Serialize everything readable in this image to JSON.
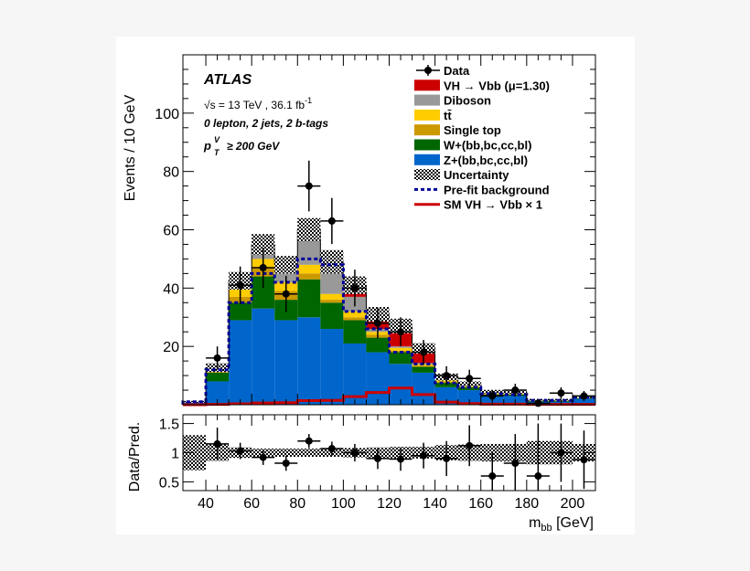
{
  "colors": {
    "vh": "#cc0000",
    "diboson": "#999999",
    "ttbar": "#ffcc00",
    "singletop": "#cc9900",
    "wjets": "#006600",
    "zjets": "#0066cc",
    "prefit": "#000099",
    "smvh": "#cc0000"
  },
  "chart_data": [
    {
      "type": "bar",
      "stacked": true,
      "annotations": {
        "atlas": "ATLAS",
        "energy": "√s = 13 TeV , 36.1 fb",
        "energy_sup": "-1",
        "selection": "0 lepton, 2 jets, 2 b-tags",
        "ptv_p": "p",
        "ptv_sup": "V",
        "ptv_sub": "T",
        "ptv_rest": "≥ 200 GeV"
      },
      "ylabel": "Events / 10 GeV",
      "ylim": [
        0,
        120
      ],
      "yticks": [
        20,
        40,
        60,
        80,
        100
      ],
      "xlim": [
        30,
        210
      ],
      "bin_edges": [
        30,
        40,
        50,
        60,
        70,
        80,
        90,
        100,
        110,
        120,
        130,
        140,
        150,
        160,
        170,
        180,
        190,
        200,
        210
      ],
      "series": [
        {
          "name": "Z+(bb,bc,cc,bl)",
          "key": "zjets",
          "values": [
            0.8,
            8,
            29,
            33,
            29,
            30,
            26,
            21,
            18,
            14,
            11,
            6,
            5,
            3,
            3,
            1,
            1,
            2
          ]
        },
        {
          "name": "W+(bb,bc,cc,bl)",
          "key": "wjets",
          "values": [
            0.2,
            3,
            6,
            11,
            7,
            13,
            9,
            8,
            5,
            4,
            2,
            1.5,
            1,
            0.5,
            0.5,
            0.3,
            0.3,
            0.3
          ]
        },
        {
          "name": "Single top",
          "key": "singletop",
          "values": [
            0,
            0.5,
            2,
            3,
            3,
            2,
            1,
            1,
            1,
            0.5,
            0.3,
            0.3,
            0.2,
            0.2,
            0.2,
            0.1,
            0.1,
            0.1
          ]
        },
        {
          "name": "tt̄",
          "key": "ttbar",
          "values": [
            0,
            0.5,
            3,
            3,
            3,
            3,
            2,
            2,
            1,
            1,
            0.5,
            0.5,
            0.3,
            0.3,
            0.2,
            0.1,
            0.1,
            0.1
          ]
        },
        {
          "name": "Diboson",
          "key": "diboson",
          "values": [
            0,
            0.5,
            2,
            4,
            5,
            10,
            9,
            5,
            1,
            0.5,
            0.5,
            0.2,
            0.2,
            0.2,
            0.2,
            0.1,
            0.1,
            0.1
          ]
        },
        {
          "name": "VH → Vbb (μ=1.30)",
          "key": "vh",
          "values": [
            0,
            0.2,
            0.5,
            1,
            1,
            2,
            2,
            4,
            5,
            7,
            5,
            1,
            0.5,
            0.3,
            0.2,
            0.1,
            0.1,
            0.1
          ]
        }
      ],
      "uncertainty_half_width": [
        0.3,
        1.5,
        3,
        3.5,
        3,
        4,
        4,
        3,
        2.5,
        2.5,
        1.8,
        1.2,
        0.8,
        0.6,
        0.5,
        0.3,
        0.3,
        0.4
      ],
      "prefit_background": [
        1,
        12,
        35,
        45,
        42,
        50,
        48,
        32,
        26,
        18,
        14,
        7.5,
        6,
        3.8,
        3.5,
        1.5,
        1.5,
        2.5
      ],
      "sm_vh": [
        0,
        0.1,
        0.3,
        0.6,
        0.7,
        1.4,
        1.5,
        2.8,
        4.2,
        5.7,
        3.5,
        0.9,
        0.4,
        0.2,
        0.2,
        0.1,
        0.1,
        0.1
      ],
      "data": {
        "x": [
          45,
          55,
          65,
          75,
          85,
          95,
          105,
          115,
          125,
          135,
          145,
          155,
          165,
          175,
          185,
          195,
          205
        ],
        "y": [
          16,
          41,
          47,
          38,
          75,
          63,
          40,
          28,
          25,
          18,
          10,
          9,
          3,
          5,
          0.5,
          4,
          3
        ],
        "err": [
          4,
          6.4,
          6.9,
          6.2,
          8.7,
          7.9,
          6.3,
          5.3,
          5,
          4.2,
          3.2,
          3,
          1.7,
          2.2,
          0.7,
          2,
          1.7
        ]
      },
      "legend": {
        "placement": "top-right",
        "entries": [
          {
            "label": "Data",
            "style": "marker"
          },
          {
            "label": "VH  → Vbb (μ=1.30)",
            "style": "fill",
            "key": "vh"
          },
          {
            "label": "Diboson",
            "style": "fill",
            "key": "diboson"
          },
          {
            "label": "tt̄",
            "style": "fill",
            "key": "ttbar"
          },
          {
            "label": "Single top",
            "style": "fill",
            "key": "singletop"
          },
          {
            "label": "W+(bb,bc,cc,bl)",
            "style": "fill",
            "key": "wjets"
          },
          {
            "label": "Z+(bb,bc,cc,bl)",
            "style": "fill",
            "key": "zjets"
          },
          {
            "label": "Uncertainty",
            "style": "hatch"
          },
          {
            "label": "Pre-fit background",
            "style": "dash",
            "key": "prefit"
          },
          {
            "label": "SM VH  → Vbb  × 1",
            "style": "line",
            "key": "smvh"
          }
        ]
      }
    },
    {
      "type": "scatter",
      "ylabel": "Data/Pred.",
      "ylim": [
        0.35,
        1.65
      ],
      "yticks": [
        0.5,
        1,
        1.5
      ],
      "ytick_labels": [
        "0.5",
        "1",
        "1.5"
      ],
      "xlim": [
        30,
        210
      ],
      "xticks": [
        40,
        60,
        80,
        100,
        120,
        140,
        160,
        180,
        200
      ],
      "xtick_labels": [
        "40",
        "60",
        "80",
        "100",
        "120",
        "140",
        "160",
        "180",
        "200"
      ],
      "xlabel_main": "m",
      "xlabel_sub": "bb",
      "xlabel_unit": " [GeV]",
      "bin_edges": [
        30,
        40,
        50,
        60,
        70,
        80,
        90,
        100,
        110,
        120,
        130,
        140,
        150,
        160,
        170,
        180,
        190,
        200,
        210
      ],
      "uncertainty_band": [
        0.3,
        0.14,
        0.09,
        0.07,
        0.07,
        0.07,
        0.07,
        0.08,
        0.09,
        0.1,
        0.1,
        0.13,
        0.14,
        0.15,
        0.15,
        0.2,
        0.2,
        0.15
      ],
      "data": {
        "x": [
          45,
          55,
          65,
          75,
          85,
          95,
          105,
          115,
          125,
          135,
          145,
          155,
          165,
          175,
          185,
          195,
          205
        ],
        "y": [
          1.15,
          1.03,
          0.92,
          0.82,
          1.2,
          1.07,
          1.0,
          0.9,
          0.89,
          0.95,
          0.9,
          1.12,
          0.6,
          0.82,
          0.6,
          1.0,
          0.88
        ],
        "err": [
          0.28,
          0.14,
          0.13,
          0.13,
          0.12,
          0.12,
          0.15,
          0.18,
          0.2,
          0.22,
          0.3,
          0.35,
          0.4,
          0.5,
          0.9,
          0.5,
          0.5
        ]
      }
    }
  ]
}
